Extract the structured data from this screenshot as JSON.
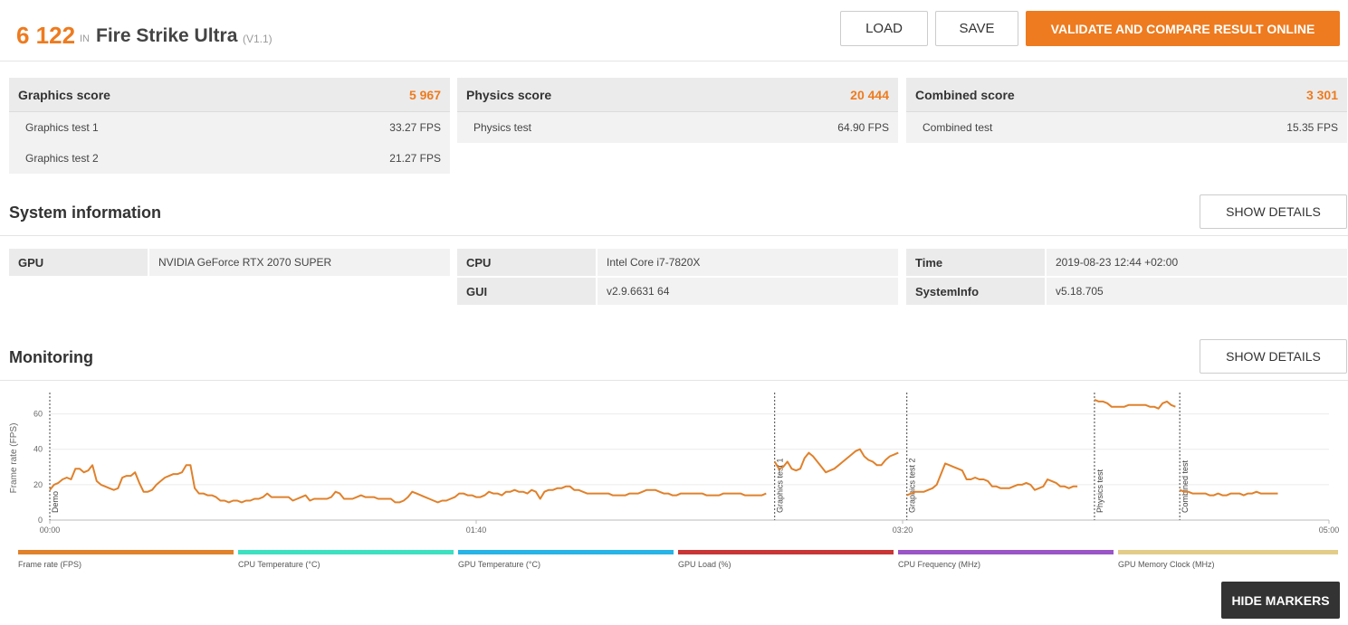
{
  "header": {
    "score": "6 122",
    "in_label": "IN",
    "benchmark": "Fire Strike Ultra",
    "version": "(V1.1)",
    "load_label": "LOAD",
    "save_label": "SAVE",
    "validate_label": "VALIDATE AND COMPARE RESULT ONLINE"
  },
  "scores": {
    "graphics": {
      "label": "Graphics score",
      "value": "5 967",
      "tests": [
        {
          "name": "Graphics test 1",
          "value": "33.27 FPS"
        },
        {
          "name": "Graphics test 2",
          "value": "21.27 FPS"
        }
      ]
    },
    "physics": {
      "label": "Physics score",
      "value": "20 444",
      "tests": [
        {
          "name": "Physics test",
          "value": "64.90 FPS"
        }
      ]
    },
    "combined": {
      "label": "Combined score",
      "value": "3 301",
      "tests": [
        {
          "name": "Combined test",
          "value": "15.35 FPS"
        }
      ]
    }
  },
  "system_info": {
    "title": "System information",
    "details_label": "SHOW DETAILS",
    "gpu": {
      "key": "GPU",
      "value": "NVIDIA GeForce RTX 2070 SUPER"
    },
    "cpu": {
      "key": "CPU",
      "value": "Intel Core i7-7820X"
    },
    "gui": {
      "key": "GUI",
      "value": "v2.9.6631 64"
    },
    "time": {
      "key": "Time",
      "value": "2019-08-23 12:44 +02:00"
    },
    "sysinfo": {
      "key": "SystemInfo",
      "value": "v5.18.705"
    }
  },
  "monitoring": {
    "title": "Monitoring",
    "details_label": "SHOW DETAILS",
    "hide_markers_label": "HIDE MARKERS",
    "legend": [
      {
        "label": "Frame rate (FPS)",
        "color": "#e0812b"
      },
      {
        "label": "CPU Temperature (°C)",
        "color": "#3de0c0"
      },
      {
        "label": "GPU Temperature (°C)",
        "color": "#28b4e6"
      },
      {
        "label": "GPU Load (%)",
        "color": "#c93636"
      },
      {
        "label": "CPU Frequency (MHz)",
        "color": "#9a55c6"
      },
      {
        "label": "GPU Memory Clock (MHz)",
        "color": "#e2cc88"
      }
    ]
  },
  "chart_data": {
    "type": "line",
    "ylabel": "Frame rate (FPS)",
    "xlabel": "",
    "ylim": [
      0,
      70
    ],
    "yticks": [
      0,
      20,
      40,
      60
    ],
    "xlim": [
      0,
      300
    ],
    "xticks": [
      {
        "t": 0,
        "label": "00:00"
      },
      {
        "t": 100,
        "label": "01:40"
      },
      {
        "t": 200,
        "label": "03:20"
      },
      {
        "t": 300,
        "label": "05:00"
      }
    ],
    "grid": true,
    "line_color": "#e0812b",
    "markers": [
      {
        "t": 0,
        "label": "Demo"
      },
      {
        "t": 170,
        "label": "Graphics test 1"
      },
      {
        "t": 201,
        "label": "Graphics test 2"
      },
      {
        "t": 245,
        "label": "Physics test"
      },
      {
        "t": 265,
        "label": "Combined test"
      }
    ],
    "segments": [
      {
        "name": "Demo",
        "points": [
          [
            0,
            17
          ],
          [
            1,
            20
          ],
          [
            2,
            21
          ],
          [
            3,
            23
          ],
          [
            4,
            24
          ],
          [
            5,
            23
          ],
          [
            6,
            29
          ],
          [
            7,
            29
          ],
          [
            8,
            27
          ],
          [
            9,
            28
          ],
          [
            10,
            31
          ],
          [
            11,
            22
          ],
          [
            12,
            20
          ],
          [
            13,
            19
          ],
          [
            14,
            18
          ],
          [
            15,
            17
          ],
          [
            16,
            18
          ],
          [
            17,
            24
          ],
          [
            18,
            25
          ],
          [
            19,
            25
          ],
          [
            20,
            27
          ],
          [
            21,
            21
          ],
          [
            22,
            16
          ],
          [
            23,
            16
          ],
          [
            24,
            17
          ],
          [
            25,
            20
          ],
          [
            26,
            22
          ],
          [
            27,
            24
          ],
          [
            28,
            25
          ],
          [
            29,
            26
          ],
          [
            30,
            26
          ],
          [
            31,
            27
          ],
          [
            32,
            31
          ],
          [
            33,
            31
          ],
          [
            34,
            18
          ],
          [
            35,
            15
          ],
          [
            36,
            15
          ],
          [
            37,
            14
          ],
          [
            38,
            14
          ],
          [
            39,
            13
          ],
          [
            40,
            11
          ],
          [
            41,
            11
          ],
          [
            42,
            10
          ],
          [
            43,
            11
          ],
          [
            44,
            11
          ],
          [
            45,
            10
          ],
          [
            46,
            11
          ],
          [
            47,
            11
          ],
          [
            48,
            12
          ],
          [
            49,
            12
          ],
          [
            50,
            13
          ],
          [
            51,
            15
          ],
          [
            52,
            13
          ],
          [
            53,
            13
          ],
          [
            54,
            13
          ],
          [
            55,
            13
          ],
          [
            56,
            13
          ],
          [
            57,
            11
          ],
          [
            58,
            12
          ],
          [
            59,
            13
          ],
          [
            60,
            14
          ],
          [
            61,
            11
          ],
          [
            62,
            12
          ],
          [
            63,
            12
          ],
          [
            64,
            12
          ],
          [
            65,
            12
          ],
          [
            66,
            13
          ],
          [
            67,
            16
          ],
          [
            68,
            15
          ],
          [
            69,
            12
          ],
          [
            70,
            12
          ],
          [
            71,
            12
          ],
          [
            72,
            13
          ],
          [
            73,
            14
          ],
          [
            74,
            13
          ],
          [
            75,
            13
          ],
          [
            76,
            13
          ],
          [
            77,
            12
          ],
          [
            78,
            12
          ],
          [
            79,
            12
          ],
          [
            80,
            12
          ],
          [
            81,
            10
          ],
          [
            82,
            10
          ],
          [
            83,
            11
          ],
          [
            84,
            13
          ],
          [
            85,
            16
          ],
          [
            86,
            15
          ],
          [
            87,
            14
          ],
          [
            88,
            13
          ],
          [
            89,
            12
          ],
          [
            90,
            11
          ],
          [
            91,
            10
          ],
          [
            92,
            11
          ],
          [
            93,
            11
          ],
          [
            94,
            12
          ],
          [
            95,
            13
          ],
          [
            96,
            15
          ],
          [
            97,
            15
          ],
          [
            98,
            14
          ],
          [
            99,
            14
          ],
          [
            100,
            13
          ],
          [
            101,
            13
          ],
          [
            102,
            14
          ],
          [
            103,
            16
          ],
          [
            104,
            15
          ],
          [
            105,
            15
          ],
          [
            106,
            14
          ],
          [
            107,
            16
          ],
          [
            108,
            16
          ],
          [
            109,
            17
          ],
          [
            110,
            16
          ],
          [
            111,
            16
          ],
          [
            112,
            15
          ],
          [
            113,
            17
          ],
          [
            114,
            16
          ],
          [
            115,
            12
          ],
          [
            116,
            16
          ],
          [
            117,
            17
          ],
          [
            118,
            17
          ],
          [
            119,
            18
          ],
          [
            120,
            18
          ],
          [
            121,
            19
          ],
          [
            122,
            19
          ],
          [
            123,
            17
          ],
          [
            124,
            17
          ],
          [
            125,
            16
          ],
          [
            126,
            15
          ],
          [
            127,
            15
          ],
          [
            128,
            15
          ],
          [
            129,
            15
          ],
          [
            130,
            15
          ],
          [
            131,
            15
          ],
          [
            132,
            14
          ],
          [
            133,
            14
          ],
          [
            134,
            14
          ],
          [
            135,
            14
          ],
          [
            136,
            15
          ],
          [
            137,
            15
          ],
          [
            138,
            15
          ],
          [
            139,
            16
          ],
          [
            140,
            17
          ],
          [
            141,
            17
          ],
          [
            142,
            17
          ],
          [
            143,
            16
          ],
          [
            144,
            15
          ],
          [
            145,
            15
          ],
          [
            146,
            14
          ],
          [
            147,
            14
          ],
          [
            148,
            15
          ],
          [
            149,
            15
          ],
          [
            150,
            15
          ],
          [
            151,
            15
          ],
          [
            152,
            15
          ],
          [
            153,
            15
          ],
          [
            154,
            14
          ],
          [
            155,
            14
          ],
          [
            156,
            14
          ],
          [
            157,
            14
          ],
          [
            158,
            15
          ],
          [
            159,
            15
          ],
          [
            160,
            15
          ],
          [
            161,
            15
          ],
          [
            162,
            15
          ],
          [
            163,
            14
          ],
          [
            164,
            14
          ],
          [
            165,
            14
          ],
          [
            166,
            14
          ],
          [
            167,
            14
          ],
          [
            168,
            15
          ]
        ]
      },
      {
        "name": "Graphics test 1",
        "points": [
          [
            170,
            33
          ],
          [
            171,
            29
          ],
          [
            172,
            30
          ],
          [
            173,
            33
          ],
          [
            174,
            29
          ],
          [
            175,
            28
          ],
          [
            176,
            29
          ],
          [
            177,
            35
          ],
          [
            178,
            38
          ],
          [
            179,
            36
          ],
          [
            180,
            33
          ],
          [
            181,
            30
          ],
          [
            182,
            27
          ],
          [
            183,
            28
          ],
          [
            184,
            29
          ],
          [
            185,
            31
          ],
          [
            186,
            33
          ],
          [
            187,
            35
          ],
          [
            188,
            37
          ],
          [
            189,
            39
          ],
          [
            190,
            40
          ],
          [
            191,
            36
          ],
          [
            192,
            34
          ],
          [
            193,
            33
          ],
          [
            194,
            31
          ],
          [
            195,
            31
          ],
          [
            196,
            34
          ],
          [
            197,
            36
          ],
          [
            198,
            37
          ],
          [
            199,
            38
          ]
        ]
      },
      {
        "name": "Graphics test 2",
        "points": [
          [
            201,
            14
          ],
          [
            202,
            15
          ],
          [
            203,
            16
          ],
          [
            204,
            16
          ],
          [
            205,
            16
          ],
          [
            206,
            17
          ],
          [
            207,
            18
          ],
          [
            208,
            20
          ],
          [
            209,
            26
          ],
          [
            210,
            32
          ],
          [
            211,
            31
          ],
          [
            212,
            30
          ],
          [
            213,
            29
          ],
          [
            214,
            28
          ],
          [
            215,
            23
          ],
          [
            216,
            23
          ],
          [
            217,
            24
          ],
          [
            218,
            23
          ],
          [
            219,
            23
          ],
          [
            220,
            22
          ],
          [
            221,
            19
          ],
          [
            222,
            19
          ],
          [
            223,
            18
          ],
          [
            224,
            18
          ],
          [
            225,
            18
          ],
          [
            226,
            19
          ],
          [
            227,
            20
          ],
          [
            228,
            20
          ],
          [
            229,
            21
          ],
          [
            230,
            20
          ],
          [
            231,
            17
          ],
          [
            232,
            18
          ],
          [
            233,
            19
          ],
          [
            234,
            23
          ],
          [
            235,
            22
          ],
          [
            236,
            21
          ],
          [
            237,
            19
          ],
          [
            238,
            19
          ],
          [
            239,
            18
          ],
          [
            240,
            19
          ],
          [
            241,
            19
          ]
        ]
      },
      {
        "name": "Physics test",
        "points": [
          [
            245,
            68
          ],
          [
            246,
            67
          ],
          [
            247,
            67
          ],
          [
            248,
            66
          ],
          [
            249,
            64
          ],
          [
            250,
            64
          ],
          [
            251,
            64
          ],
          [
            252,
            64
          ],
          [
            253,
            65
          ],
          [
            254,
            65
          ],
          [
            255,
            65
          ],
          [
            256,
            65
          ],
          [
            257,
            65
          ],
          [
            258,
            64
          ],
          [
            259,
            64
          ],
          [
            260,
            63
          ],
          [
            261,
            66
          ],
          [
            262,
            67
          ],
          [
            263,
            65
          ],
          [
            264,
            64
          ]
        ]
      },
      {
        "name": "Combined test",
        "points": [
          [
            265,
            17
          ],
          [
            266,
            16
          ],
          [
            267,
            16
          ],
          [
            268,
            15
          ],
          [
            269,
            15
          ],
          [
            270,
            15
          ],
          [
            271,
            15
          ],
          [
            272,
            14
          ],
          [
            273,
            14
          ],
          [
            274,
            15
          ],
          [
            275,
            14
          ],
          [
            276,
            14
          ],
          [
            277,
            15
          ],
          [
            278,
            15
          ],
          [
            279,
            15
          ],
          [
            280,
            14
          ],
          [
            281,
            15
          ],
          [
            282,
            15
          ],
          [
            283,
            16
          ],
          [
            284,
            15
          ],
          [
            285,
            15
          ],
          [
            286,
            15
          ],
          [
            287,
            15
          ],
          [
            288,
            15
          ]
        ]
      }
    ]
  }
}
